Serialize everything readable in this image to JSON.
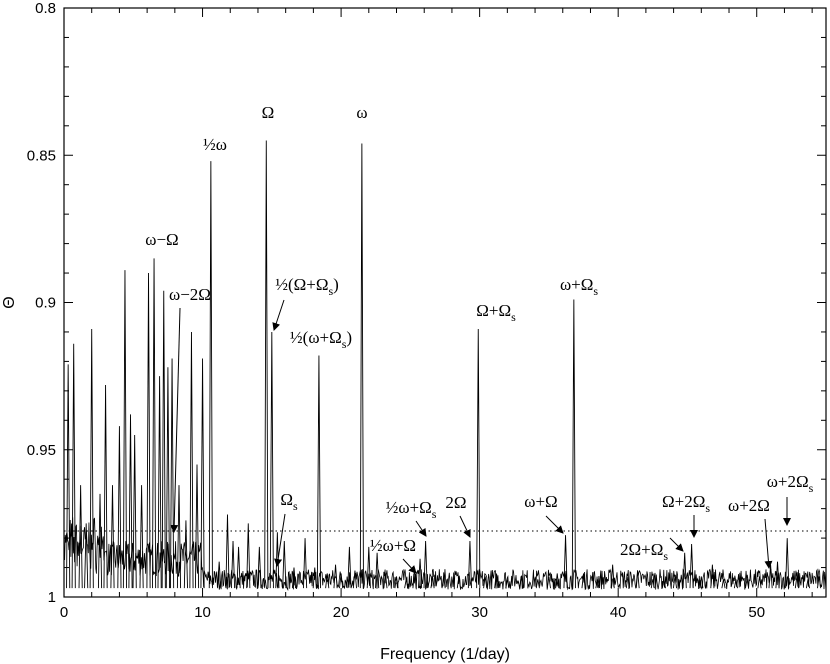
{
  "chart_data": {
    "type": "line",
    "title": "",
    "xlabel": "Frequency (1/day)",
    "ylabel": "Θ",
    "xlim": [
      0,
      55
    ],
    "ylim": [
      0.8,
      1.0
    ],
    "y_inverted": true,
    "xticks": [
      0,
      10,
      20,
      30,
      40,
      50
    ],
    "yticks": [
      0.8,
      0.85,
      0.9,
      0.95,
      1.0
    ],
    "ytick_labels": [
      "0.8",
      "0.85",
      "0.9",
      "0.95",
      "1"
    ],
    "grid": false,
    "threshold": {
      "y": 0.9776,
      "style": "dotted"
    },
    "peaks": [
      [
        0.3,
        0.921
      ],
      [
        0.7,
        0.914
      ],
      [
        1.2,
        0.962
      ],
      [
        1.6,
        0.975
      ],
      [
        2.0,
        0.909
      ],
      [
        2.6,
        0.965
      ],
      [
        3.0,
        0.928
      ],
      [
        3.5,
        0.962
      ],
      [
        4.0,
        0.942
      ],
      [
        4.4,
        0.889
      ],
      [
        4.8,
        0.938
      ],
      [
        5.1,
        0.945
      ],
      [
        5.6,
        0.962
      ],
      [
        6.1,
        0.89
      ],
      [
        6.5,
        0.885
      ],
      [
        6.9,
        0.925
      ],
      [
        7.2,
        0.896
      ],
      [
        7.5,
        0.922
      ],
      [
        7.8,
        0.919
      ],
      [
        8.3,
        0.962
      ],
      [
        8.8,
        0.974
      ],
      [
        9.2,
        0.91
      ],
      [
        9.6,
        0.955
      ],
      [
        10.0,
        0.919
      ],
      [
        10.6,
        0.852
      ],
      [
        11.2,
        0.988
      ],
      [
        11.8,
        0.972
      ],
      [
        12.2,
        0.981
      ],
      [
        12.6,
        0.983
      ],
      [
        13.3,
        0.975
      ],
      [
        14.1,
        0.983
      ],
      [
        14.6,
        0.845
      ],
      [
        15.0,
        0.91
      ],
      [
        15.4,
        0.978
      ],
      [
        15.9,
        0.981
      ],
      [
        16.6,
        0.99
      ],
      [
        17.4,
        0.98
      ],
      [
        18.1,
        0.99
      ],
      [
        18.4,
        0.918
      ],
      [
        19.0,
        0.992
      ],
      [
        19.6,
        0.989
      ],
      [
        20.0,
        0.992
      ],
      [
        20.6,
        0.983
      ],
      [
        21.0,
        0.991
      ],
      [
        21.5,
        0.846
      ],
      [
        22.0,
        0.983
      ],
      [
        22.6,
        0.985
      ],
      [
        23.2,
        0.992
      ],
      [
        24.0,
        0.993
      ],
      [
        24.7,
        0.994
      ],
      [
        25.3,
        0.99
      ],
      [
        25.7,
        0.987
      ],
      [
        26.1,
        0.981
      ],
      [
        26.6,
        0.993
      ],
      [
        27.4,
        0.993
      ],
      [
        28.5,
        0.993
      ],
      [
        29.3,
        0.981
      ],
      [
        29.9,
        0.909
      ],
      [
        30.4,
        0.993
      ],
      [
        31.2,
        0.992
      ],
      [
        32.0,
        0.994
      ],
      [
        33.0,
        0.993
      ],
      [
        34.2,
        0.994
      ],
      [
        35.0,
        0.993
      ],
      [
        35.6,
        0.992
      ],
      [
        36.2,
        0.979
      ],
      [
        36.8,
        0.899
      ],
      [
        37.5,
        0.992
      ],
      [
        38.5,
        0.994
      ],
      [
        39.6,
        0.989
      ],
      [
        40.7,
        0.993
      ],
      [
        41.4,
        0.991
      ],
      [
        42.5,
        0.994
      ],
      [
        43.3,
        0.994
      ],
      [
        44.1,
        0.993
      ],
      [
        44.8,
        0.985
      ],
      [
        45.3,
        0.982
      ],
      [
        46.0,
        0.993
      ],
      [
        46.8,
        0.989
      ],
      [
        47.6,
        0.994
      ],
      [
        48.5,
        0.994
      ],
      [
        49.3,
        0.994
      ],
      [
        50.2,
        0.993
      ],
      [
        51.0,
        0.989
      ],
      [
        51.5,
        0.988
      ],
      [
        52.2,
        0.98
      ],
      [
        52.9,
        0.993
      ],
      [
        53.7,
        0.994
      ],
      [
        54.5,
        0.993
      ]
    ],
    "annotations": [
      {
        "text": "Ω",
        "x": 14.6,
        "y": 0.845
      },
      {
        "text": "ω",
        "x": 21.5,
        "y": 0.846
      },
      {
        "text": "½ω",
        "x": 10.6,
        "y": 0.852
      },
      {
        "text": "ω−Ω",
        "x": 6.5,
        "y": 0.885
      },
      {
        "text": "ω−2Ω",
        "x": 7.3,
        "y": 0.896
      },
      {
        "text": "½(Ω+Ω",
        "sub": "s",
        "tail": ")",
        "x": 15.0,
        "y": 0.91
      },
      {
        "text": "½(ω+Ω",
        "sub": "s",
        "tail": ")",
        "x": 18.4,
        "y": 0.918
      },
      {
        "text": "Ω+Ω",
        "sub": "s",
        "x": 29.9,
        "y": 0.909
      },
      {
        "text": "ω+Ω",
        "sub": "s",
        "x": 36.8,
        "y": 0.899
      },
      {
        "text": "Ω",
        "sub": "s",
        "x": 15.5,
        "y": 0.991
      },
      {
        "text": "½ω+Ω",
        "sub": "s",
        "x": 26.1,
        "y": 0.981
      },
      {
        "text": "½ω+Ω",
        "x": 25.3,
        "y": 0.99
      },
      {
        "text": "2Ω",
        "x": 29.3,
        "y": 0.981
      },
      {
        "text": "ω+Ω",
        "x": 36.2,
        "y": 0.979
      },
      {
        "text": "Ω+2Ω",
        "sub": "s",
        "x": 45.3,
        "y": 0.982
      },
      {
        "text": "2Ω+Ω",
        "sub": "s",
        "x": 44.8,
        "y": 0.985
      },
      {
        "text": "ω+2Ω",
        "x": 51.0,
        "y": 0.989
      },
      {
        "text": "ω+2Ω",
        "sub": "s",
        "x": 52.2,
        "y": 0.98
      }
    ]
  }
}
